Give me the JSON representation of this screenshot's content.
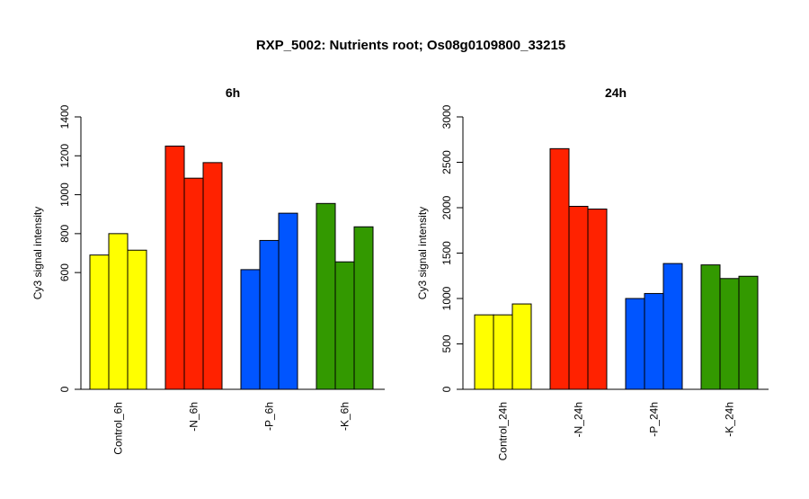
{
  "figure": {
    "title": "RXP_5002: Nutrients root; Os08g0109800_33215"
  },
  "chart_data": [
    {
      "type": "bar",
      "title": "6h",
      "ylabel": "Cy3 signal intensity",
      "xlabel": "",
      "ylim": [
        0,
        1400
      ],
      "yticks": [
        0,
        600,
        800,
        1000,
        1200,
        1400
      ],
      "grid": false,
      "categories": [
        "Control_6h",
        "-N_6h",
        "-P_6h",
        "-K_6h"
      ],
      "group_colors": [
        "#ffff00",
        "#ff2200",
        "#0055ff",
        "#339900"
      ],
      "groups": [
        [
          690,
          800,
          715
        ],
        [
          1250,
          1085,
          1165
        ],
        [
          615,
          765,
          905
        ],
        [
          955,
          655,
          835
        ]
      ]
    },
    {
      "type": "bar",
      "title": "24h",
      "ylabel": "Cy3 signal intensity",
      "xlabel": "",
      "ylim": [
        0,
        3000
      ],
      "yticks": [
        0,
        500,
        1000,
        1500,
        2000,
        2500,
        3000
      ],
      "grid": false,
      "categories": [
        "Control_24h",
        "-N_24h",
        "-P_24h",
        "-K_24h"
      ],
      "group_colors": [
        "#ffff00",
        "#ff2200",
        "#0055ff",
        "#339900"
      ],
      "groups": [
        [
          820,
          820,
          940
        ],
        [
          2650,
          2015,
          1985
        ],
        [
          1000,
          1055,
          1385
        ],
        [
          1370,
          1220,
          1245
        ]
      ]
    }
  ]
}
